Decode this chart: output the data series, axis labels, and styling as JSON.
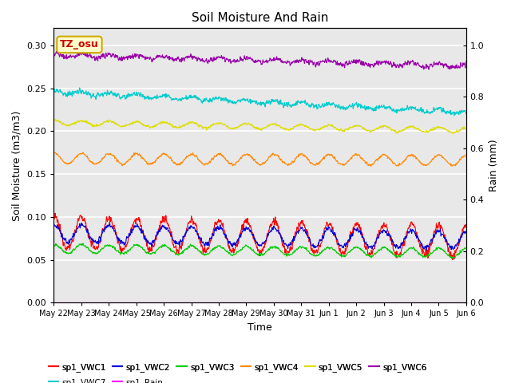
{
  "title": "Soil Moisture And Rain",
  "xlabel": "Time",
  "ylabel_left": "Soil Moisture (m3/m3)",
  "ylabel_right": "Rain (mm)",
  "annotation_text": "TZ_osu",
  "annotation_bg": "#ffffcc",
  "annotation_border": "#ccaa00",
  "annotation_text_color": "#cc0000",
  "background_color": "#e8e8e8",
  "ylim_left": [
    0.0,
    0.32
  ],
  "ylim_right": [
    0.0,
    1.0667
  ],
  "n_days": 15,
  "n_points": 1440,
  "series_order": [
    "sp1_VWC1",
    "sp1_VWC2",
    "sp1_VWC3",
    "sp1_VWC4",
    "sp1_VWC5",
    "sp1_VWC6",
    "sp1_VWC7",
    "sp1_Rain"
  ],
  "series": {
    "sp1_VWC1": {
      "color": "#ff0000",
      "lw": 0.8,
      "base": 0.082,
      "amp": 0.018,
      "noise": 0.003,
      "period": 24,
      "trend": -0.01,
      "phase": 1.5
    },
    "sp1_VWC2": {
      "color": "#0000dd",
      "lw": 0.8,
      "base": 0.081,
      "amp": 0.01,
      "noise": 0.002,
      "period": 24,
      "trend": -0.008,
      "phase": 1.5
    },
    "sp1_VWC3": {
      "color": "#00cc00",
      "lw": 0.8,
      "base": 0.063,
      "amp": 0.005,
      "noise": 0.001,
      "period": 24,
      "trend": -0.005,
      "phase": 1.5
    },
    "sp1_VWC4": {
      "color": "#ff8800",
      "lw": 0.8,
      "base": 0.168,
      "amp": 0.006,
      "noise": 0.001,
      "period": 24,
      "trend": -0.002,
      "phase": 1.5
    },
    "sp1_VWC5": {
      "color": "#dddd00",
      "lw": 0.8,
      "base": 0.21,
      "amp": 0.003,
      "noise": 0.001,
      "period": 24,
      "trend": -0.009,
      "phase": 1.5
    },
    "sp1_VWC6": {
      "color": "#9900aa",
      "lw": 0.8,
      "base": 0.289,
      "amp": 0.002,
      "noise": 0.002,
      "period": 24,
      "trend": -0.013,
      "phase": 1.5
    },
    "sp1_VWC7": {
      "color": "#00cccc",
      "lw": 0.8,
      "base": 0.246,
      "amp": 0.002,
      "noise": 0.002,
      "period": 24,
      "trend": -0.024,
      "phase": 1.5
    },
    "sp1_Rain": {
      "color": "#ff00ff",
      "lw": 0.8,
      "base": 0.0,
      "amp": 0.0,
      "noise": 0.0,
      "period": 24,
      "trend": 0.0,
      "phase": 0.0
    }
  },
  "xtick_labels": [
    "May 22",
    "May 23",
    "May 24",
    "May 25",
    "May 26",
    "May 27",
    "May 28",
    "May 29",
    "May 30",
    "May 31",
    "Jun 1",
    "Jun 2",
    "Jun 3",
    "Jun 4",
    "Jun 5",
    "Jun 6"
  ],
  "yticks_left": [
    0.0,
    0.05,
    0.1,
    0.15,
    0.2,
    0.25,
    0.3
  ],
  "yticks_right": [
    0.0,
    0.2,
    0.4,
    0.6,
    0.8,
    1.0
  ],
  "legend_row1": [
    "sp1_VWC1",
    "sp1_VWC2",
    "sp1_VWC3",
    "sp1_VWC4",
    "sp1_VWC5",
    "sp1_VWC6"
  ],
  "legend_row2": [
    "sp1_VWC7",
    "sp1_Rain"
  ]
}
